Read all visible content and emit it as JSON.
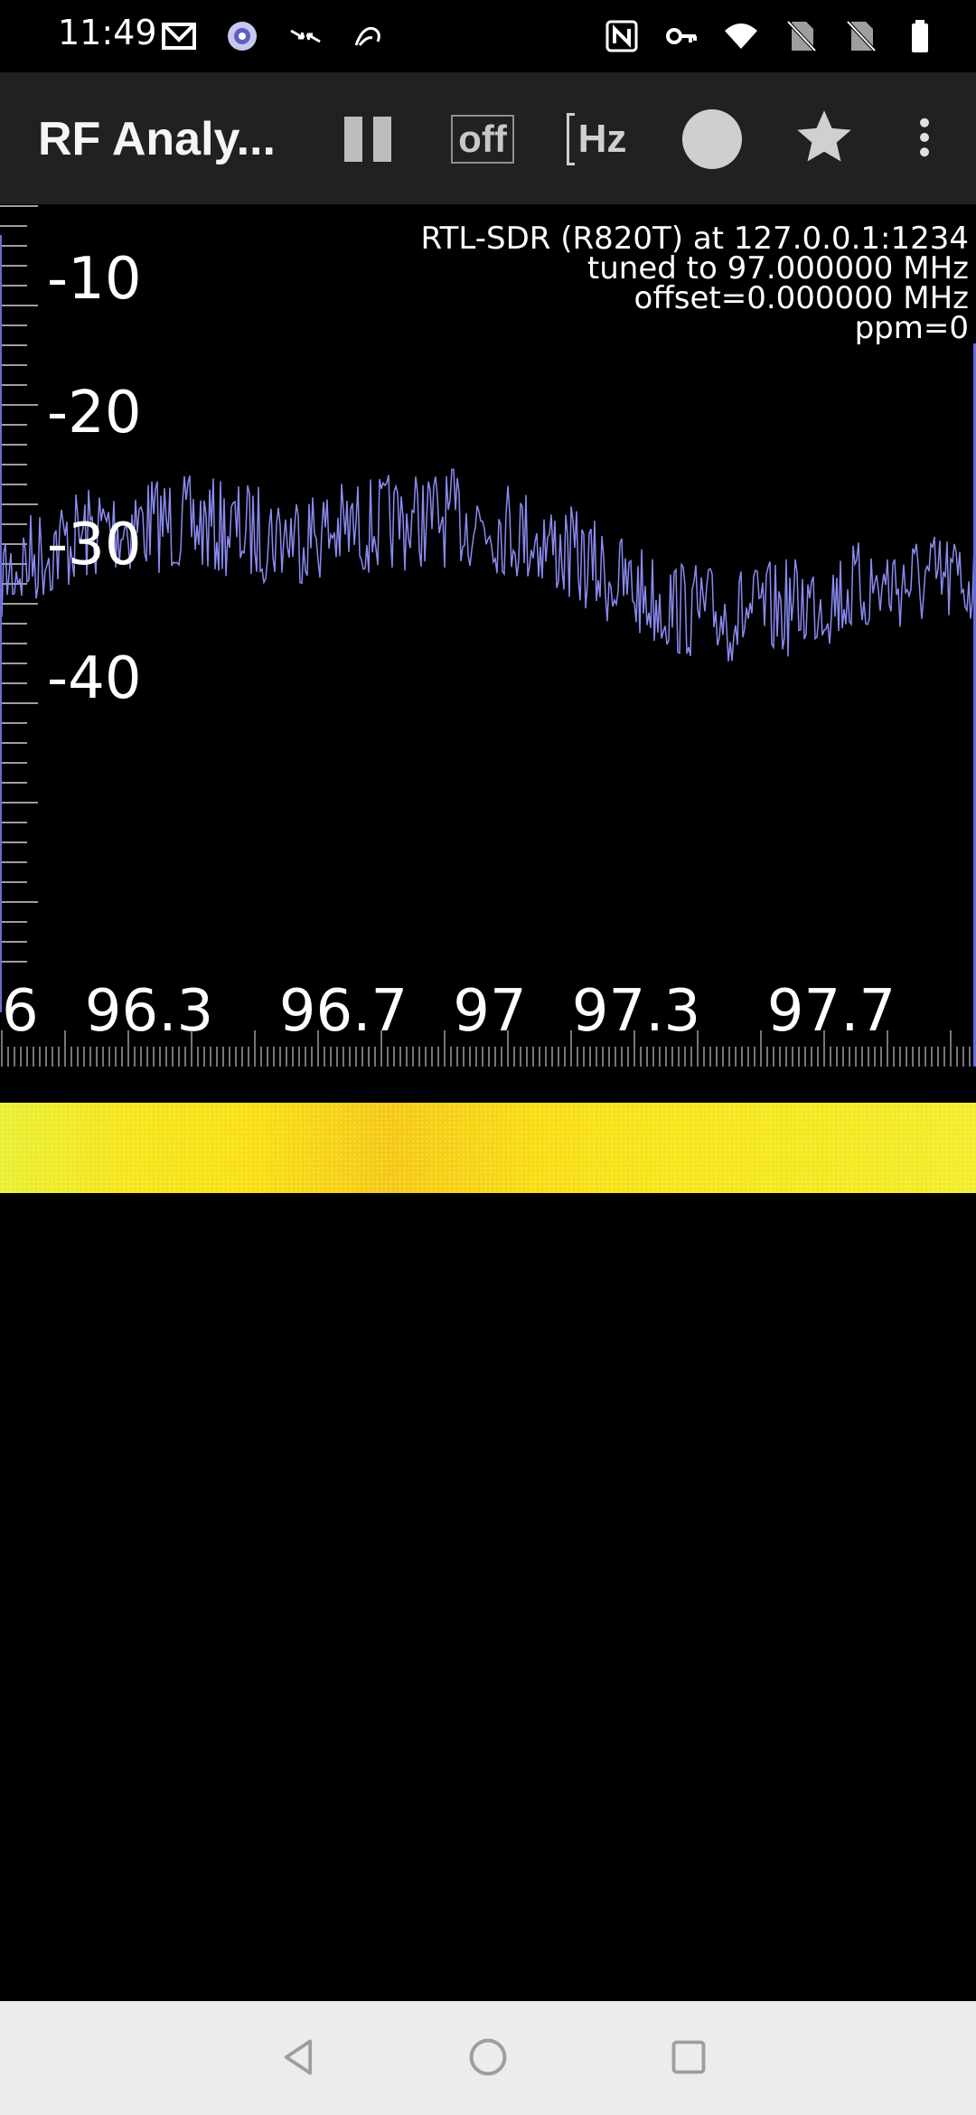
{
  "status_bar": {
    "time": "11:49",
    "left_icons": [
      "gmail-icon",
      "settings-app-icon",
      "data-saver-icon",
      "surf-icon"
    ],
    "right_icons": [
      "nfc-icon",
      "vpn-key-icon",
      "wifi-icon",
      "no-sim-icon",
      "no-sim-icon",
      "battery-icon"
    ]
  },
  "toolbar": {
    "title": "RF Analy...",
    "pause_icon": "pause-icon",
    "off_label": "off",
    "hz_label": "Hz",
    "record_icon": "record-circle-icon",
    "favorite_icon": "star-icon",
    "overflow_icon": "more-vert-icon"
  },
  "spectrum": {
    "y_labels": [
      "-10",
      "-20",
      "-30",
      "-40"
    ],
    "x_labels": [
      "6",
      "96.3",
      "96.7",
      "97",
      "97.3",
      "97.7"
    ],
    "info": {
      "device": "RTL-SDR (R820T) at 127.0.0.1:1234",
      "tuned": "tuned to 97.000000 MHz",
      "offset": "offset=0.000000 MHz",
      "ppm": "ppm=0"
    },
    "trace_color": "#8a8af0"
  },
  "waterfall": {
    "colors": [
      "#f8e010",
      "#f5c812",
      "#e8ef30"
    ]
  },
  "nav_bar": {
    "back_icon": "back-triangle-icon",
    "home_icon": "home-circle-icon",
    "recents_icon": "recents-square-icon"
  }
}
